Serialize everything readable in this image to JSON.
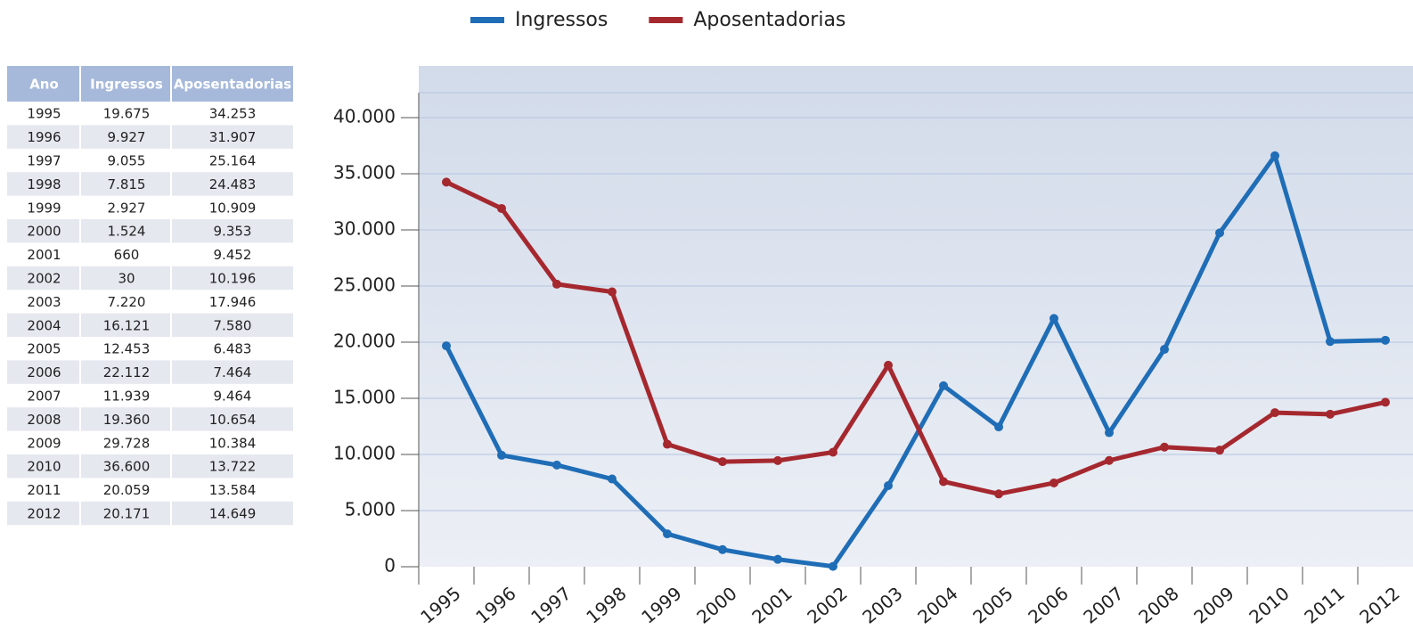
{
  "table": {
    "columns": [
      "Ano",
      "Ingressos",
      "Aposentadorias"
    ]
  },
  "chart_data": {
    "type": "line",
    "categories": [
      "1995",
      "1996",
      "1997",
      "1998",
      "1999",
      "2000",
      "2001",
      "2002",
      "2003",
      "2004",
      "2005",
      "2006",
      "2007",
      "2008",
      "2009",
      "2010",
      "2011",
      "2012"
    ],
    "series": [
      {
        "name": "Ingressos",
        "color": "#1f6db6",
        "values": [
          19675,
          9927,
          9055,
          7815,
          2927,
          1524,
          660,
          30,
          7220,
          16121,
          12453,
          22112,
          11939,
          19360,
          29728,
          36600,
          20059,
          20171
        ],
        "value_labels": [
          "19.675",
          "9.927",
          "9.055",
          "7.815",
          "2.927",
          "1.524",
          "660",
          "30",
          "7.220",
          "16.121",
          "12.453",
          "22.112",
          "11.939",
          "19.360",
          "29.728",
          "36.600",
          "20.059",
          "20.171"
        ]
      },
      {
        "name": "Aposentadorias",
        "color": "#a5282f",
        "values": [
          34253,
          31907,
          25164,
          24483,
          10909,
          9353,
          9452,
          10196,
          17946,
          7580,
          6483,
          7464,
          9464,
          10654,
          10384,
          13722,
          13584,
          14649
        ],
        "value_labels": [
          "34.253",
          "31.907",
          "25.164",
          "24.483",
          "10.909",
          "9.353",
          "9.452",
          "10.196",
          "17.946",
          "7.580",
          "6.483",
          "7.464",
          "9.464",
          "10.654",
          "10.384",
          "13.722",
          "13.584",
          "14.649"
        ]
      }
    ],
    "ylim": [
      0,
      44600
    ],
    "yticks": [
      0,
      {
        "value": 5000,
        "label": "5.000"
      },
      {
        "value": 10000,
        "label": "10.000"
      },
      {
        "value": 15000,
        "label": "15.000"
      },
      {
        "value": 20000,
        "label": "20.000"
      },
      {
        "value": 25000,
        "label": "25.000"
      },
      {
        "value": 30000,
        "label": "30.000"
      },
      {
        "value": 35000,
        "label": "35.000"
      },
      {
        "value": 40000,
        "label": "40.000"
      }
    ],
    "grid": true,
    "legend": "top"
  }
}
